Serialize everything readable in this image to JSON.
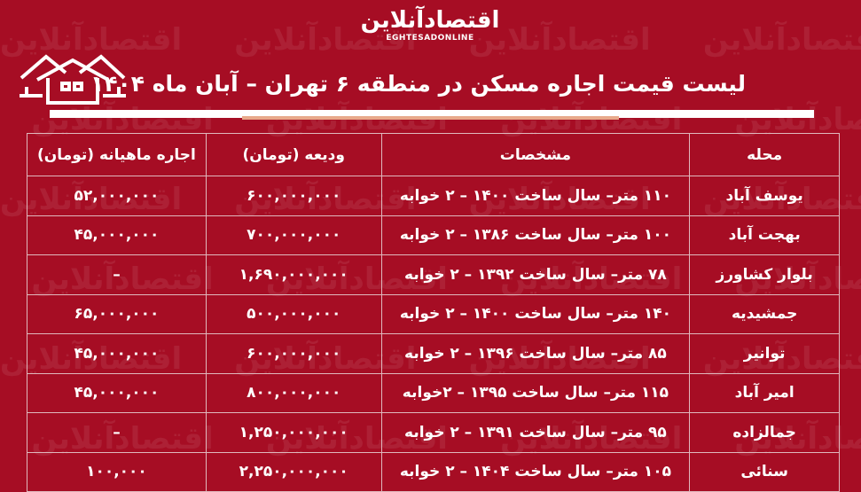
{
  "brand": {
    "name_fa": "اقتصادآنلاین",
    "name_en": "EGHTESADONLINE"
  },
  "title": "لیست قیمت اجاره مسکن در منطقه ۶ تهران –  آبان ماه ۱۴۰۴",
  "colors": {
    "background": "#a60d24",
    "text": "#ffffff",
    "accent_bar": "#e8a98a"
  },
  "header_icon": "house-icon",
  "table": {
    "headers": [
      "محله",
      "مشخصات",
      "ودیعه (تومان)",
      "اجاره ماهیانه (تومان)"
    ],
    "rows": [
      [
        "یوسف آباد",
        "۱۱۰ متر– سال ساخت ۱۴۰۰ – ۲ خوابه",
        "۶۰۰,۰۰۰,۰۰۰",
        "۵۲,۰۰۰,۰۰۰"
      ],
      [
        "بهجت آباد",
        "۱۰۰ متر– سال ساخت ۱۳۸۶ – ۲ خوابه",
        "۷۰۰,۰۰۰,۰۰۰",
        "۴۵,۰۰۰,۰۰۰"
      ],
      [
        "بلوار کشاورز",
        "۷۸ متر– سال ساخت ۱۳۹۲ – ۲ خوابه",
        "۱,۶۹۰,۰۰۰,۰۰۰",
        "–"
      ],
      [
        "جمشیدیه",
        "۱۴۰ متر– سال ساخت ۱۴۰۰ – ۲ خوابه",
        "۵۰۰,۰۰۰,۰۰۰",
        "۶۵,۰۰۰,۰۰۰"
      ],
      [
        "توانیر",
        "۸۵ متر– سال ساخت ۱۳۹۶ –  ۲ خوابه",
        "۶۰۰,۰۰۰,۰۰۰",
        "۴۵,۰۰۰,۰۰۰"
      ],
      [
        "امیر آباد",
        "۱۱۵ متر– سال ساخت ۱۳۹۵ –  ۲خوابه",
        "۸۰۰,۰۰۰,۰۰۰",
        "۴۵,۰۰۰,۰۰۰"
      ],
      [
        "جمالزاده",
        "۹۵ متر– سال ساخت ۱۳۹۱ – ۲ خوابه",
        "۱,۲۵۰,۰۰۰,۰۰۰",
        "–"
      ],
      [
        "سنائی",
        "۱۰۵ متر– سال ساخت ۱۴۰۴ – ۲ خوابه",
        "۲,۲۵۰,۰۰۰,۰۰۰",
        "۱۰۰,۰۰۰"
      ]
    ]
  }
}
